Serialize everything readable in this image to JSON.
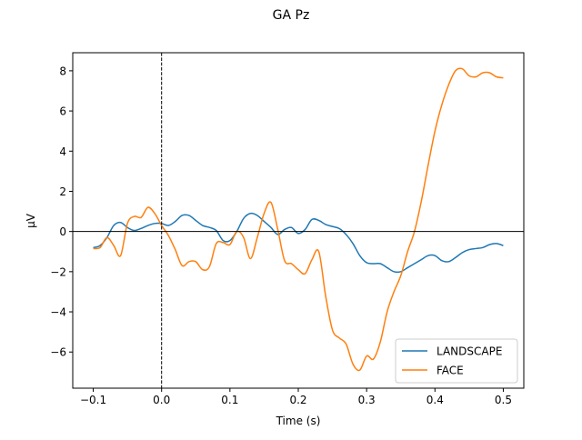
{
  "chart_data": {
    "type": "line",
    "title": "GA Pz",
    "xlabel": "Time (s)",
    "ylabel": "µV",
    "xlim": [
      -0.13,
      0.53
    ],
    "ylim": [
      -7.8,
      8.9
    ],
    "xticks": [
      -0.1,
      0.0,
      0.1,
      0.2,
      0.3,
      0.4,
      0.5
    ],
    "xtick_labels": [
      "−0.1",
      "0.0",
      "0.1",
      "0.2",
      "0.3",
      "0.4",
      "0.5"
    ],
    "yticks": [
      -6,
      -4,
      -2,
      0,
      2,
      4,
      6,
      8
    ],
    "ytick_labels": [
      "−6",
      "−4",
      "−2",
      "0",
      "2",
      "4",
      "6",
      "8"
    ],
    "vline_x": 0.0,
    "hline_y": 0.0,
    "grid": false,
    "legend_position": "lower-right",
    "series": [
      {
        "name": "LANDSCAPE",
        "color": "#1f77b4",
        "x": [
          -0.1,
          -0.09,
          -0.08,
          -0.07,
          -0.06,
          -0.05,
          -0.04,
          -0.03,
          -0.02,
          -0.01,
          0.0,
          0.01,
          0.02,
          0.03,
          0.04,
          0.05,
          0.06,
          0.07,
          0.08,
          0.09,
          0.1,
          0.11,
          0.12,
          0.13,
          0.14,
          0.15,
          0.16,
          0.17,
          0.18,
          0.19,
          0.2,
          0.21,
          0.22,
          0.23,
          0.24,
          0.25,
          0.26,
          0.27,
          0.28,
          0.29,
          0.3,
          0.31,
          0.32,
          0.33,
          0.34,
          0.35,
          0.36,
          0.37,
          0.38,
          0.39,
          0.4,
          0.41,
          0.42,
          0.43,
          0.44,
          0.45,
          0.46,
          0.47,
          0.48,
          0.49,
          0.5
        ],
        "y": [
          -0.8,
          -0.7,
          -0.3,
          0.3,
          0.45,
          0.2,
          0.05,
          0.15,
          0.3,
          0.4,
          0.4,
          0.3,
          0.5,
          0.8,
          0.8,
          0.55,
          0.3,
          0.2,
          0.05,
          -0.45,
          -0.45,
          0.0,
          0.65,
          0.9,
          0.8,
          0.5,
          0.2,
          -0.15,
          0.1,
          0.2,
          -0.1,
          0.1,
          0.6,
          0.55,
          0.35,
          0.25,
          0.15,
          -0.15,
          -0.6,
          -1.2,
          -1.55,
          -1.6,
          -1.6,
          -1.8,
          -2.0,
          -2.0,
          -1.8,
          -1.6,
          -1.4,
          -1.2,
          -1.2,
          -1.45,
          -1.5,
          -1.3,
          -1.05,
          -0.9,
          -0.85,
          -0.8,
          -0.65,
          -0.6,
          -0.7
        ]
      },
      {
        "name": "FACE",
        "color": "#ff7f0e",
        "x": [
          -0.1,
          -0.09,
          -0.08,
          -0.07,
          -0.06,
          -0.05,
          -0.04,
          -0.03,
          -0.02,
          -0.01,
          0.0,
          0.01,
          0.02,
          0.03,
          0.04,
          0.05,
          0.06,
          0.07,
          0.08,
          0.09,
          0.1,
          0.11,
          0.12,
          0.13,
          0.14,
          0.15,
          0.16,
          0.17,
          0.18,
          0.19,
          0.2,
          0.21,
          0.22,
          0.23,
          0.24,
          0.25,
          0.26,
          0.27,
          0.28,
          0.29,
          0.3,
          0.31,
          0.32,
          0.33,
          0.34,
          0.35,
          0.36,
          0.37,
          0.38,
          0.39,
          0.4,
          0.41,
          0.42,
          0.43,
          0.44,
          0.45,
          0.46,
          0.47,
          0.48,
          0.49,
          0.5
        ],
        "y": [
          -0.85,
          -0.8,
          -0.3,
          -0.7,
          -1.2,
          0.4,
          0.75,
          0.7,
          1.2,
          0.9,
          0.3,
          -0.2,
          -0.9,
          -1.7,
          -1.5,
          -1.5,
          -1.9,
          -1.75,
          -0.6,
          -0.55,
          -0.65,
          0.0,
          -0.3,
          -1.35,
          -0.3,
          0.9,
          1.45,
          0.1,
          -1.45,
          -1.6,
          -1.9,
          -2.1,
          -1.4,
          -1.0,
          -3.2,
          -4.9,
          -5.3,
          -5.6,
          -6.6,
          -6.9,
          -6.2,
          -6.35,
          -5.5,
          -4.0,
          -3.0,
          -2.2,
          -1.0,
          0.0,
          1.5,
          3.3,
          5.0,
          6.3,
          7.3,
          8.0,
          8.1,
          7.75,
          7.7,
          7.9,
          7.9,
          7.7,
          7.65
        ]
      }
    ]
  }
}
